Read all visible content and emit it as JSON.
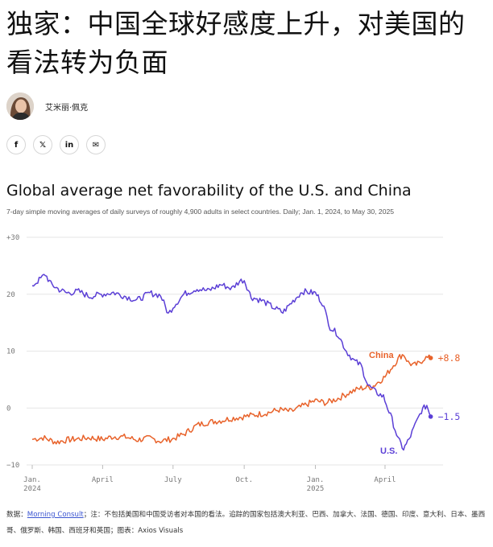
{
  "article": {
    "headline": "独家：中国全球好感度上升，对美国的看法转为负面",
    "author": "艾米丽·佩克"
  },
  "share": [
    {
      "icon": "facebook-icon",
      "glyph": "f"
    },
    {
      "icon": "x-icon",
      "glyph": "𝕏"
    },
    {
      "icon": "linkedin-icon",
      "glyph": "in"
    },
    {
      "icon": "email-icon",
      "glyph": "✉"
    }
  ],
  "colors": {
    "us": "#5b3fd6",
    "china": "#e8622a",
    "grid": "#e6e6e6",
    "axis_text": "#777777"
  },
  "chart_data": {
    "type": "line",
    "title": "Global average net favorability of the U.S. and China",
    "subtitle": "7-day simple moving averages of daily surveys of roughly 4,900 adults in select countries. Daily; Jan. 1, 2024, to May 30, 2025",
    "ylim": [
      -10,
      30
    ],
    "y_ticks": [
      {
        "value": -10,
        "label": "−10"
      },
      {
        "value": 0,
        "label": "0"
      },
      {
        "value": 10,
        "label": "10"
      },
      {
        "value": 20,
        "label": "20"
      },
      {
        "value": 30,
        "label": "+30"
      }
    ],
    "x_ticks": [
      {
        "date": "2024-01-01",
        "line1": "Jan.",
        "line2": "2024"
      },
      {
        "date": "2024-04-01",
        "line1": "April",
        "line2": ""
      },
      {
        "date": "2024-07-01",
        "line1": "July",
        "line2": ""
      },
      {
        "date": "2024-10-01",
        "line1": "Oct.",
        "line2": ""
      },
      {
        "date": "2025-01-01",
        "line1": "Jan.",
        "line2": "2025"
      },
      {
        "date": "2025-04-01",
        "line1": "April",
        "line2": ""
      }
    ],
    "series": [
      {
        "name": "U.S.",
        "end_label": "−1.5",
        "points": [
          [
            "2024-01-01",
            21.5
          ],
          [
            "2024-01-10",
            22.5
          ],
          [
            "2024-01-18",
            23.5
          ],
          [
            "2024-01-25",
            21.8
          ],
          [
            "2024-02-05",
            20.8
          ],
          [
            "2024-02-15",
            20.2
          ],
          [
            "2024-03-01",
            20.5
          ],
          [
            "2024-03-15",
            19.6
          ],
          [
            "2024-04-01",
            20.0
          ],
          [
            "2024-04-15",
            20.3
          ],
          [
            "2024-05-01",
            19.6
          ],
          [
            "2024-05-15",
            18.9
          ],
          [
            "2024-06-01",
            20.2
          ],
          [
            "2024-06-15",
            19.8
          ],
          [
            "2024-06-25",
            16.5
          ],
          [
            "2024-07-01",
            17.8
          ],
          [
            "2024-07-15",
            20.0
          ],
          [
            "2024-08-01",
            21.0
          ],
          [
            "2024-08-15",
            20.6
          ],
          [
            "2024-09-01",
            21.7
          ],
          [
            "2024-09-15",
            21.0
          ],
          [
            "2024-09-25",
            22.3
          ],
          [
            "2024-10-01",
            22.5
          ],
          [
            "2024-10-10",
            19.5
          ],
          [
            "2024-10-25",
            18.8
          ],
          [
            "2024-11-10",
            17.5
          ],
          [
            "2024-11-20",
            16.8
          ],
          [
            "2024-12-01",
            18.5
          ],
          [
            "2024-12-15",
            20.5
          ],
          [
            "2025-01-01",
            20.2
          ],
          [
            "2025-01-10",
            18.5
          ],
          [
            "2025-01-20",
            14.2
          ],
          [
            "2025-01-30",
            13.0
          ],
          [
            "2025-02-10",
            10.0
          ],
          [
            "2025-02-20",
            8.3
          ],
          [
            "2025-03-01",
            7.5
          ],
          [
            "2025-03-10",
            4.0
          ],
          [
            "2025-03-20",
            2.8
          ],
          [
            "2025-03-30",
            2.0
          ],
          [
            "2025-04-10",
            -2.0
          ],
          [
            "2025-04-18",
            -5.5
          ],
          [
            "2025-04-25",
            -7.2
          ],
          [
            "2025-05-02",
            -5.5
          ],
          [
            "2025-05-10",
            -3.0
          ],
          [
            "2025-05-18",
            -0.5
          ],
          [
            "2025-05-25",
            0.5
          ],
          [
            "2025-05-30",
            -1.5
          ]
        ]
      },
      {
        "name": "China",
        "end_label": "+8.8",
        "points": [
          [
            "2024-01-01",
            -5.5
          ],
          [
            "2024-01-15",
            -5.2
          ],
          [
            "2024-02-01",
            -6.0
          ],
          [
            "2024-02-15",
            -5.6
          ],
          [
            "2024-03-01",
            -5.4
          ],
          [
            "2024-03-15",
            -5.2
          ],
          [
            "2024-04-01",
            -5.5
          ],
          [
            "2024-04-15",
            -5.0
          ],
          [
            "2024-05-01",
            -5.1
          ],
          [
            "2024-05-15",
            -5.6
          ],
          [
            "2024-06-01",
            -5.3
          ],
          [
            "2024-06-15",
            -5.8
          ],
          [
            "2024-07-01",
            -5.4
          ],
          [
            "2024-07-15",
            -4.6
          ],
          [
            "2024-08-01",
            -3.0
          ],
          [
            "2024-08-15",
            -2.5
          ],
          [
            "2024-09-01",
            -2.2
          ],
          [
            "2024-09-15",
            -1.8
          ],
          [
            "2024-10-01",
            -1.5
          ],
          [
            "2024-10-15",
            -1.2
          ],
          [
            "2024-11-01",
            -0.8
          ],
          [
            "2024-11-15",
            -0.3
          ],
          [
            "2024-12-01",
            -0.6
          ],
          [
            "2024-12-15",
            0.3
          ],
          [
            "2025-01-01",
            1.3
          ],
          [
            "2025-01-15",
            0.9
          ],
          [
            "2025-02-01",
            1.8
          ],
          [
            "2025-02-15",
            2.8
          ],
          [
            "2025-03-01",
            3.5
          ],
          [
            "2025-03-15",
            3.7
          ],
          [
            "2025-04-01",
            5.5
          ],
          [
            "2025-04-10",
            7.2
          ],
          [
            "2025-04-20",
            9.0
          ],
          [
            "2025-04-25",
            9.5
          ],
          [
            "2025-05-01",
            8.0
          ],
          [
            "2025-05-08",
            7.5
          ],
          [
            "2025-05-15",
            7.8
          ],
          [
            "2025-05-22",
            8.8
          ],
          [
            "2025-05-30",
            8.8
          ]
        ]
      }
    ],
    "annotations": [
      {
        "series": "China",
        "text": "China"
      },
      {
        "series": "U.S.",
        "text": "U.S."
      }
    ]
  },
  "footnote": {
    "source_prefix": "数据：",
    "source_link": "Morning Consult",
    "note": "；注：不包括美国和中国受访者对本国的看法。追踪的国家包括澳大利亚、巴西、加拿大、法国、德国、印度、意大利、日本、墨西哥、俄罗斯、韩国、西班牙和英国；图表：Axios Visuals"
  }
}
